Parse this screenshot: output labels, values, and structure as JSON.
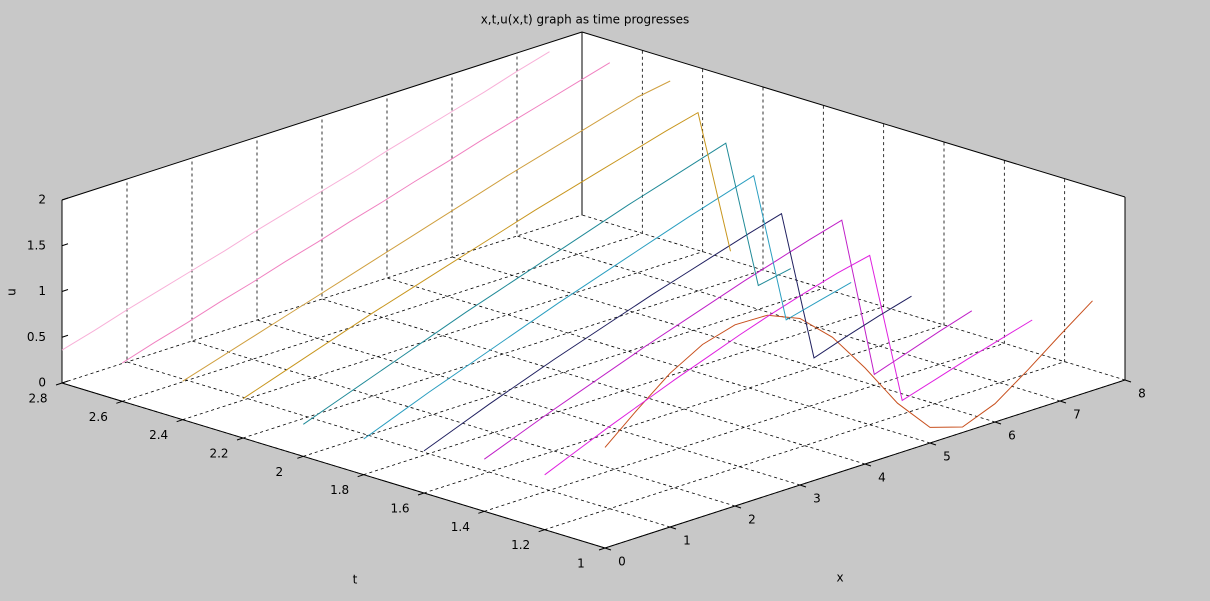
{
  "chart_data": {
    "type": "line3d",
    "title": "x,t,u(x,t) graph as time progresses",
    "xlabel": "x",
    "ylabel": "t",
    "zlabel": "u",
    "xlim": [
      0,
      8
    ],
    "xticks": [
      0,
      1,
      2,
      3,
      4,
      5,
      6,
      7,
      8
    ],
    "ylim": [
      1,
      2.8
    ],
    "yticks": [
      1,
      1.2,
      1.4,
      1.6,
      1.8,
      2,
      2.2,
      2.4,
      2.6,
      2.8
    ],
    "zlim": [
      0,
      2
    ],
    "zticks": [
      0,
      0.5,
      1,
      1.5,
      2
    ],
    "grid": true,
    "x": [
      0,
      0.5,
      1,
      1.5,
      2,
      2.5,
      3,
      3.5,
      4,
      4.5,
      5,
      5.5,
      6,
      6.5,
      7,
      7.5
    ],
    "series": [
      {
        "y": 1,
        "color": "#c8501e",
        "values": [
          1.1,
          1.4,
          1.68,
          1.88,
          1.98,
          1.97,
          1.82,
          1.5,
          1.05,
          0.55,
          0.17,
          0.06,
          0.2,
          0.45,
          0.72,
          0.98
        ]
      },
      {
        "y": 1.2,
        "color": "#e020e0",
        "values": [
          0.6,
          0.75,
          0.9,
          1.04,
          1.18,
          1.31,
          1.44,
          1.56,
          1.67,
          1.77,
          1.85,
          0.15,
          0.26,
          0.37,
          0.47,
          0.57
        ]
      },
      {
        "y": 1.4,
        "color": "#c020c8",
        "values": [
          0.57,
          0.71,
          0.85,
          0.98,
          1.11,
          1.24,
          1.36,
          1.48,
          1.6,
          1.71,
          1.82,
          1.92,
          0.12,
          0.24,
          0.36,
          0.47
        ]
      },
      {
        "y": 1.6,
        "color": "#202060",
        "values": [
          0.46,
          0.6,
          0.74,
          0.87,
          1.0,
          1.12,
          1.24,
          1.36,
          1.47,
          1.58,
          1.69,
          1.79,
          0.1,
          0.22,
          0.33,
          0.43
        ]
      },
      {
        "y": 1.8,
        "color": "#2a9ec0",
        "values": [
          0.39,
          0.53,
          0.67,
          0.8,
          0.93,
          1.06,
          1.19,
          1.31,
          1.43,
          1.55,
          1.67,
          1.78,
          1.89,
          0.2,
          0.29,
          0.38
        ]
      },
      {
        "y": 2,
        "color": "#208a98",
        "values": [
          0.35,
          0.48,
          0.61,
          0.74,
          0.87,
          1.0,
          1.12,
          1.24,
          1.36,
          1.48,
          1.6,
          1.71,
          1.82,
          1.93,
          0.26,
          0.33
        ]
      },
      {
        "y": 2.2,
        "color": "#c8961e",
        "values": [
          0.43,
          0.55,
          0.67,
          0.79,
          0.91,
          1.02,
          1.13,
          1.24,
          1.35,
          1.46,
          1.56,
          1.66,
          1.76,
          1.86,
          1.95,
          0.32
        ]
      },
      {
        "y": 2.4,
        "color": "#d0a040",
        "values": [
          0.42,
          0.53,
          0.64,
          0.75,
          0.86,
          0.97,
          1.08,
          1.19,
          1.3,
          1.41,
          1.52,
          1.62,
          1.72,
          1.82,
          1.92,
          1.98
        ]
      },
      {
        "y": 2.6,
        "color": "#f080c0",
        "values": [
          0.42,
          0.53,
          0.63,
          0.74,
          0.84,
          0.95,
          1.05,
          1.16,
          1.26,
          1.37,
          1.47,
          1.58,
          1.68,
          1.78,
          1.88,
          1.98
        ]
      },
      {
        "y": 2.8,
        "color": "#f8b0d8",
        "values": [
          0.36,
          0.46,
          0.57,
          0.67,
          0.77,
          0.87,
          0.98,
          1.08,
          1.18,
          1.28,
          1.39,
          1.49,
          1.59,
          1.69,
          1.8,
          1.9
        ]
      }
    ]
  }
}
